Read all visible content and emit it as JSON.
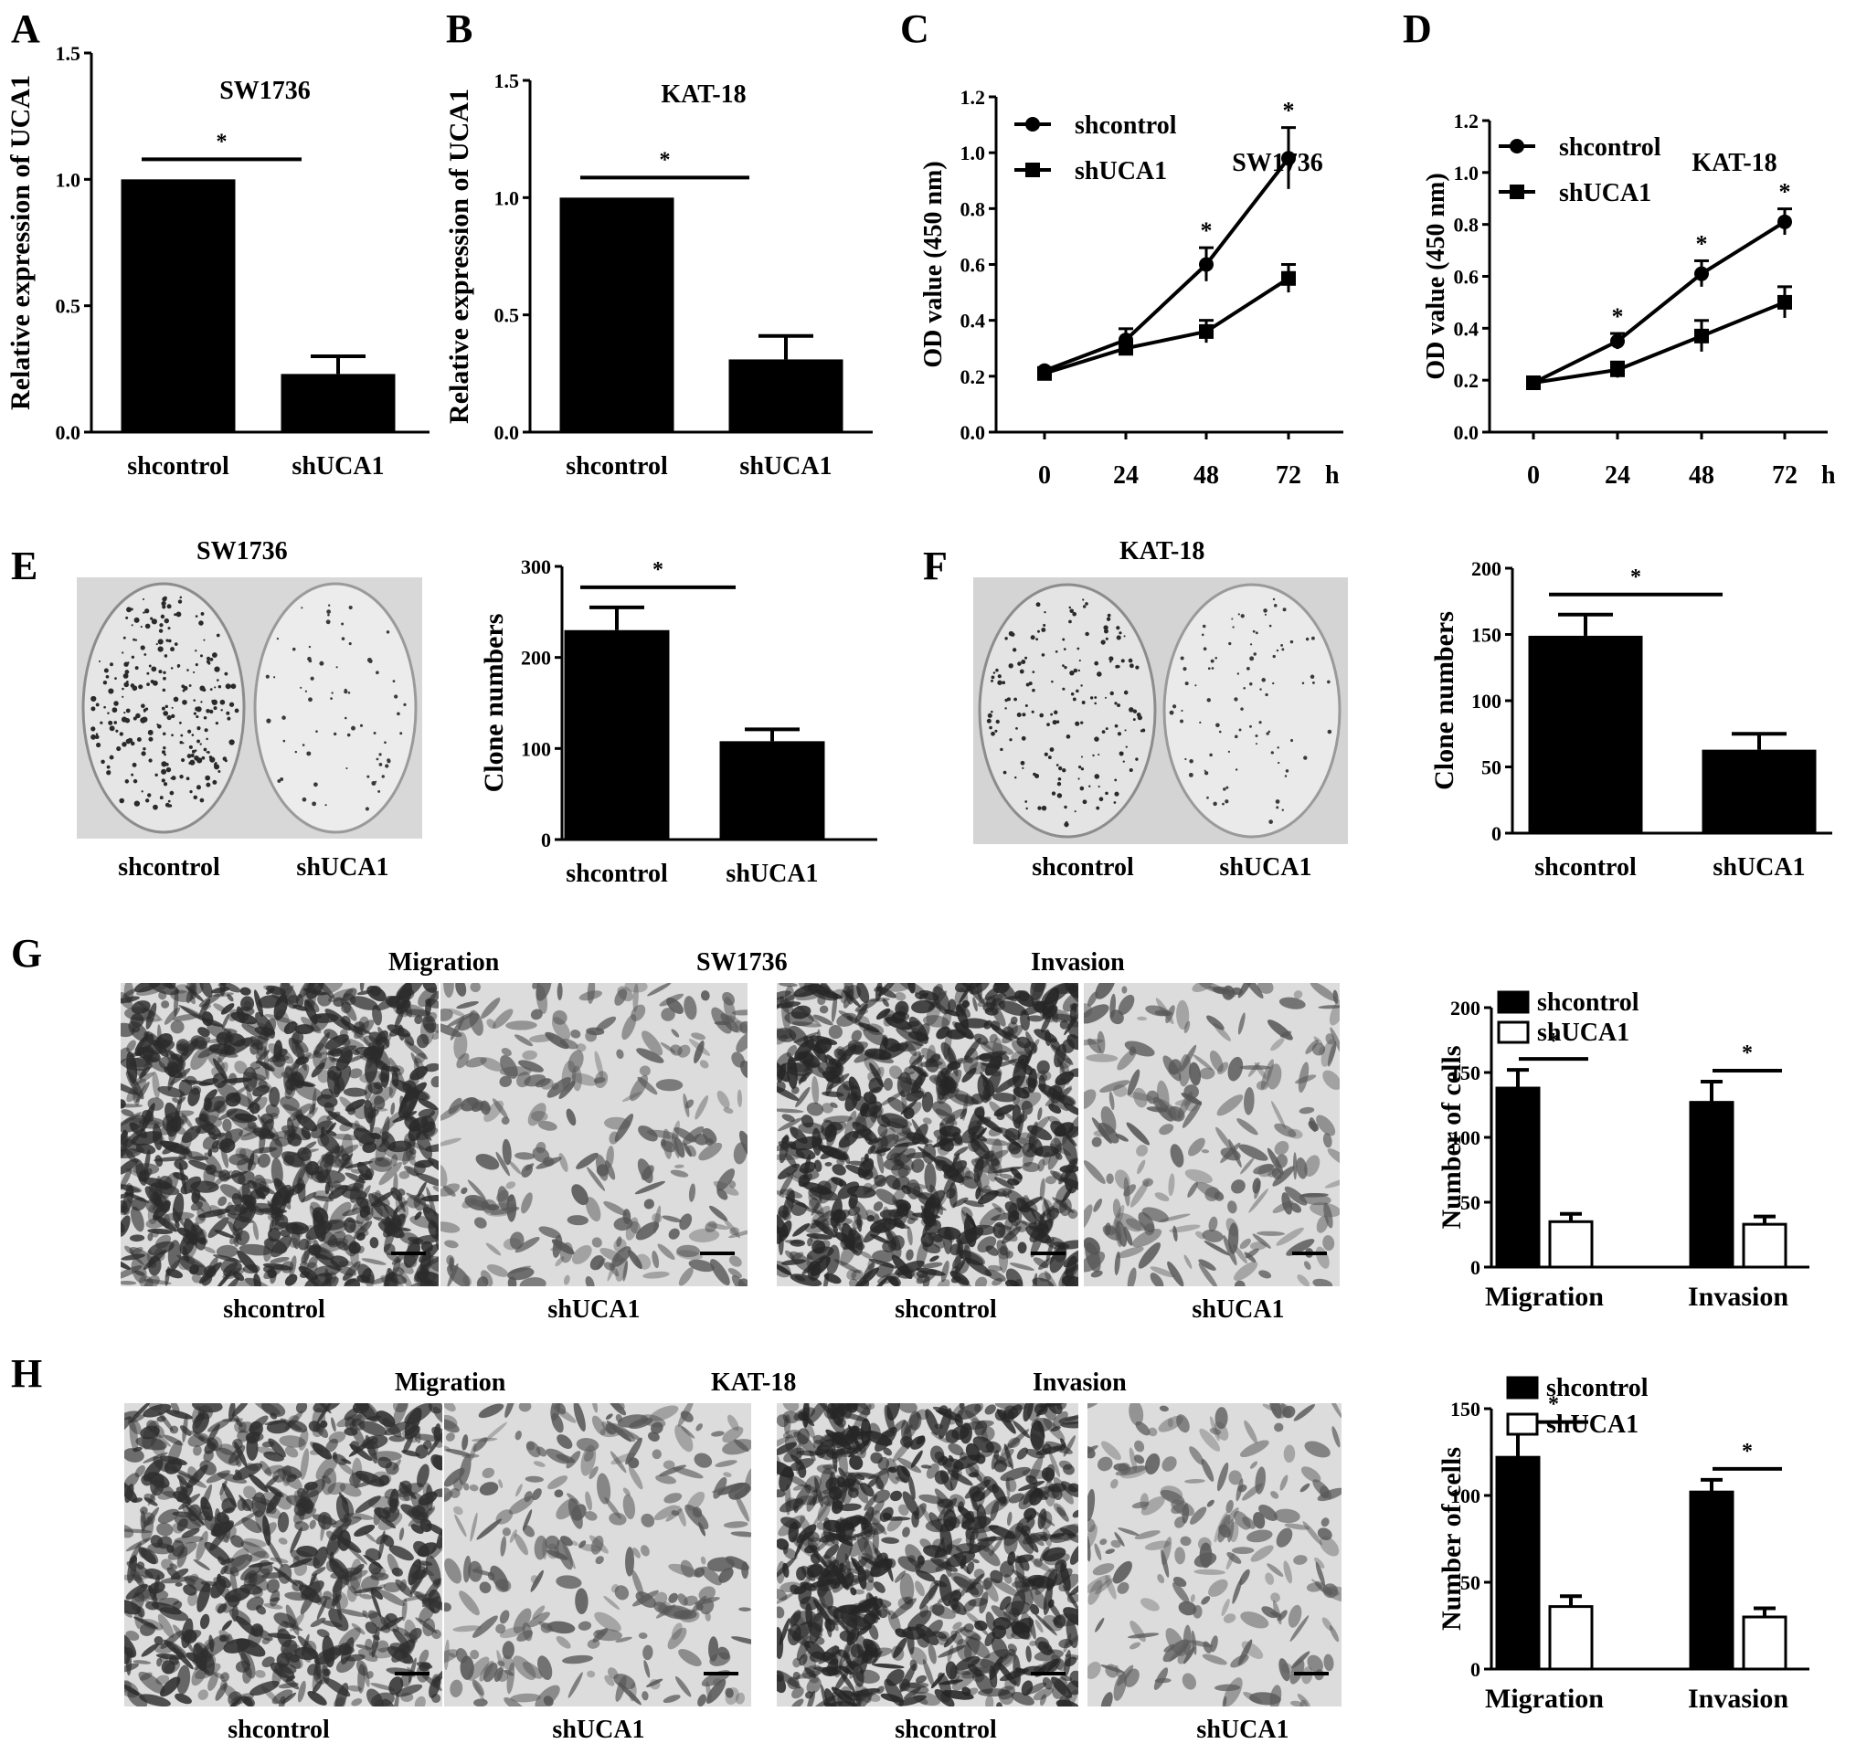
{
  "panel_labels": [
    "A",
    "B",
    "C",
    "D",
    "E",
    "F",
    "G",
    "H"
  ],
  "colors": {
    "bar": "#000000",
    "open_bar": "#ffffff",
    "axis": "#000000"
  },
  "chart_data": [
    {
      "id": "A",
      "type": "bar",
      "title": "SW1736",
      "ylabel": "Relative  expression of UCA1",
      "categories": [
        "shcontrol",
        "shUCA1"
      ],
      "values": [
        1.0,
        0.23
      ],
      "errors": [
        0,
        0.07
      ],
      "ylim": [
        0,
        1.5
      ],
      "yticks": [
        "0.0",
        "0.5",
        "1.0",
        "1.5"
      ],
      "yticks_values": [
        0,
        0.5,
        1.0,
        1.5
      ],
      "significance": "*"
    },
    {
      "id": "B",
      "type": "bar",
      "title": "KAT-18",
      "ylabel": "Relative  expression of UCA1",
      "categories": [
        "shcontrol",
        "shUCA1"
      ],
      "values": [
        1.0,
        0.31
      ],
      "errors": [
        0,
        0.1
      ],
      "ylim": [
        0,
        1.5
      ],
      "yticks": [
        "0.0",
        "0.5",
        "1.0",
        "1.5"
      ],
      "yticks_values": [
        0,
        0.5,
        1.0,
        1.5
      ],
      "significance": "*"
    },
    {
      "id": "C",
      "type": "line",
      "title": "SW1736",
      "ylabel": "OD  value (450 nm)",
      "x": [
        0,
        24,
        48,
        72
      ],
      "xticks": [
        "0",
        "24",
        "48",
        "72"
      ],
      "xunit": "h",
      "ylim": [
        0,
        1.2
      ],
      "yticks": [
        "0.0",
        "0.2",
        "0.4",
        "0.6",
        "0.8",
        "1.0",
        "1.2"
      ],
      "yticks_values": [
        0,
        0.2,
        0.4,
        0.6,
        0.8,
        1.0,
        1.2
      ],
      "series": [
        {
          "name": "shcontrol",
          "marker": "circle",
          "values": [
            0.22,
            0.33,
            0.6,
            0.98
          ],
          "errors": [
            0.01,
            0.04,
            0.06,
            0.11
          ]
        },
        {
          "name": "shUCA1",
          "marker": "square",
          "values": [
            0.21,
            0.3,
            0.36,
            0.55
          ],
          "errors": [
            0.01,
            0.02,
            0.04,
            0.05
          ]
        }
      ],
      "significance_marks": [
        48,
        72
      ],
      "significance": "*",
      "legend": "top-left"
    },
    {
      "id": "D",
      "type": "line",
      "title": "KAT-18",
      "ylabel": "OD  value (450 nm)",
      "x": [
        0,
        24,
        48,
        72
      ],
      "xticks": [
        "0",
        "24",
        "48",
        "72"
      ],
      "xunit": "h",
      "ylim": [
        0,
        1.2
      ],
      "yticks": [
        "0.0",
        "0.2",
        "0.4",
        "0.6",
        "0.8",
        "1.0",
        "1.2"
      ],
      "yticks_values": [
        0,
        0.2,
        0.4,
        0.6,
        0.8,
        1.0,
        1.2
      ],
      "series": [
        {
          "name": "shcontrol",
          "marker": "circle",
          "values": [
            0.19,
            0.35,
            0.61,
            0.81
          ],
          "errors": [
            0.02,
            0.03,
            0.05,
            0.05
          ]
        },
        {
          "name": "shUCA1",
          "marker": "square",
          "values": [
            0.19,
            0.24,
            0.37,
            0.5
          ],
          "errors": [
            0.02,
            0.03,
            0.06,
            0.06
          ]
        }
      ],
      "significance_marks": [
        24,
        48,
        72
      ],
      "significance": "*",
      "legend": "top-left"
    },
    {
      "id": "E",
      "type": "bar",
      "ylabel": "Clone  numbers",
      "categories": [
        "shcontrol",
        "shUCA1"
      ],
      "values": [
        230,
        108
      ],
      "errors": [
        25,
        13
      ],
      "ylim": [
        0,
        300
      ],
      "yticks": [
        "0",
        "100",
        "200",
        "300"
      ],
      "yticks_values": [
        0,
        100,
        200,
        300
      ],
      "significance": "*"
    },
    {
      "id": "F",
      "type": "bar",
      "ylabel": "Clone  numbers",
      "categories": [
        "shcontrol",
        "shUCA1"
      ],
      "values": [
        149,
        63
      ],
      "errors": [
        16,
        12
      ],
      "ylim": [
        0,
        200
      ],
      "yticks": [
        "0",
        "50",
        "100",
        "150",
        "200"
      ],
      "yticks_values": [
        0,
        50,
        100,
        150,
        200
      ],
      "significance": "*"
    },
    {
      "id": "G",
      "type": "bar",
      "ylabel": "Number of cells",
      "categories": [
        "Migration",
        "Invasion"
      ],
      "series": [
        {
          "name": "shcontrol",
          "values": [
            138,
            127
          ],
          "errors": [
            14,
            16
          ],
          "fill": "black"
        },
        {
          "name": "shUCA1",
          "values": [
            35,
            33
          ],
          "errors": [
            6,
            6
          ],
          "fill": "white"
        }
      ],
      "ylim": [
        0,
        200
      ],
      "yticks": [
        "0",
        "50",
        "100",
        "150",
        "200"
      ],
      "yticks_values": [
        0,
        50,
        100,
        150,
        200
      ],
      "significance": "*",
      "legend": "top"
    },
    {
      "id": "H",
      "type": "bar",
      "ylabel": "Number of cells",
      "categories": [
        "Migration",
        "Invasion"
      ],
      "series": [
        {
          "name": "shcontrol",
          "values": [
            122,
            102
          ],
          "errors": [
            14,
            7
          ],
          "fill": "black"
        },
        {
          "name": "shUCA1",
          "values": [
            36,
            30
          ],
          "errors": [
            6,
            5
          ],
          "fill": "white"
        }
      ],
      "ylim": [
        0,
        150
      ],
      "yticks": [
        "0",
        "50",
        "100",
        "150"
      ],
      "yticks_values": [
        0,
        50,
        100,
        150
      ],
      "significance": "*",
      "legend": "top"
    }
  ],
  "photos": {
    "E": {
      "title": "SW1736",
      "captions": [
        "shcontrol",
        "shUCA1"
      ]
    },
    "F": {
      "title": "KAT-18",
      "captions": [
        "shcontrol",
        "shUCA1"
      ]
    },
    "G": {
      "titles": [
        "Migration",
        "SW1736",
        "Invasion"
      ],
      "captions": [
        "shcontrol",
        "shUCA1",
        "shcontrol",
        "shUCA1"
      ]
    },
    "H": {
      "titles": [
        "Migration",
        "KAT-18",
        "Invasion"
      ],
      "captions": [
        "shcontrol",
        "shUCA1",
        "shcontrol",
        "shUCA1"
      ]
    }
  }
}
